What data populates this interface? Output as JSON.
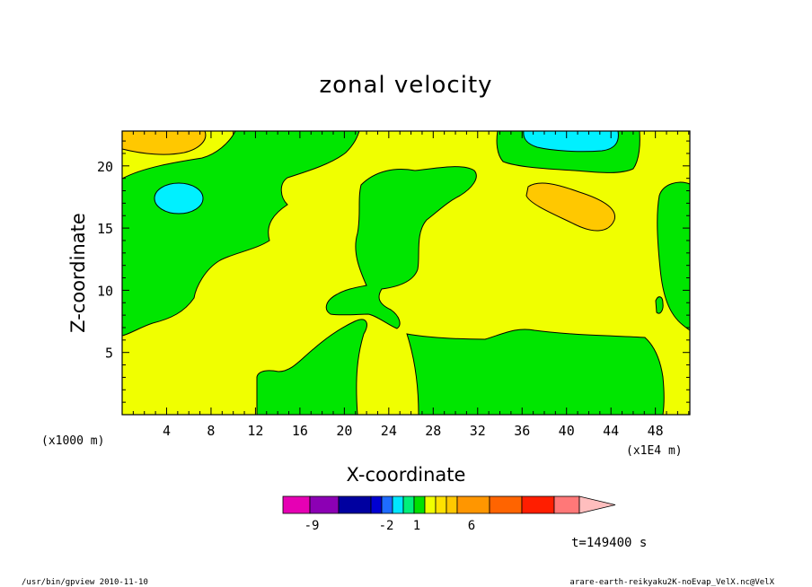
{
  "chart_data": {
    "type": "heatmap",
    "title": "zonal velocity",
    "xlabel": "X-coordinate",
    "ylabel": "Z-coordinate",
    "x_unit_left": "(x1000 m)",
    "x_unit_right": "(x1E4 m)",
    "x_ticks": [
      "4",
      "8",
      "12",
      "16",
      "20",
      "24",
      "28",
      "32",
      "36",
      "40",
      "44",
      "48"
    ],
    "y_ticks": [
      "5",
      "10",
      "15",
      "20"
    ],
    "colorbar": {
      "labels": [
        "-9",
        "-2",
        "1",
        "6"
      ],
      "colors": [
        "#e600b4",
        "#8c00b4",
        "#0000a0",
        "#0000d2",
        "#1e6cff",
        "#00e6ff",
        "#00f07a",
        "#00e100",
        "#f0ff00",
        "#ffe100",
        "#ffc800",
        "#ff9600",
        "#ff6400",
        "#ff1e00",
        "#ff7878",
        "#ffbebe"
      ]
    },
    "contour_fill": {
      "background": "#f0ff00",
      "green": "#00e600",
      "orange": "#ffc800",
      "cyan": "#00f0ff"
    },
    "time_label": "t=149400 s"
  },
  "footer": {
    "left": "/usr/bin/gpview  2010-11-10",
    "right": "arare-earth-reikyaku2K-noEvap_VelX.nc@VelX"
  }
}
